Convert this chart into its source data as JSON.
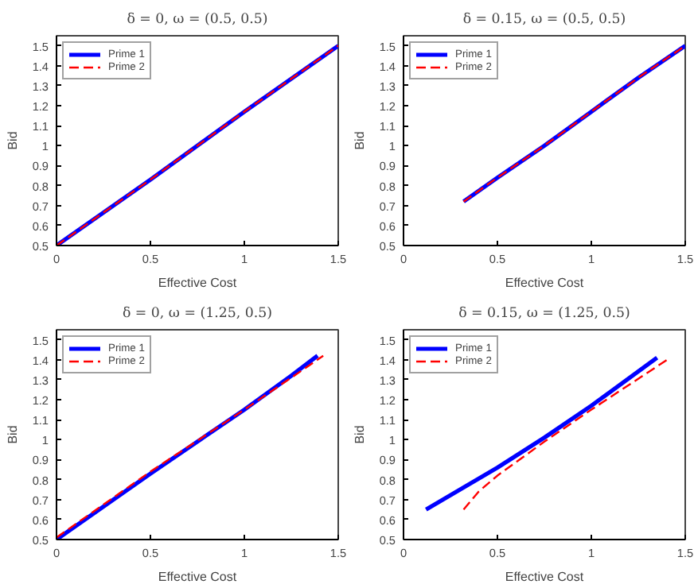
{
  "chart_data": [
    {
      "type": "line",
      "title": "δ = 0, ω = (0.5, 0.5)",
      "xlabel": "Effective Cost",
      "ylabel": "Bid",
      "xlim": [
        0,
        1.5
      ],
      "ylim": [
        0.5,
        1.55
      ],
      "xticks": [
        0,
        0.5,
        1,
        1.5
      ],
      "yticks": [
        0.5,
        0.6,
        0.7,
        0.8,
        0.9,
        1,
        1.1,
        1.2,
        1.3,
        1.4,
        1.5
      ],
      "legend": "top left",
      "grid": false,
      "series": [
        {
          "name": "Prime 1",
          "color": "#0000ff",
          "line_style": "solid",
          "x": [
            0,
            0.5,
            1,
            1.5
          ],
          "values": [
            0.5,
            0.83,
            1.17,
            1.5
          ]
        },
        {
          "name": "Prime 2",
          "color": "#ff0000",
          "line_style": "dashed",
          "x": [
            0,
            0.5,
            1,
            1.5
          ],
          "values": [
            0.5,
            0.83,
            1.17,
            1.5
          ]
        }
      ]
    },
    {
      "type": "line",
      "title": "δ = 0.15, ω = (0.5, 0.5)",
      "xlabel": "Effective Cost",
      "ylabel": "Bid",
      "xlim": [
        0,
        1.5
      ],
      "ylim": [
        0.5,
        1.55
      ],
      "xticks": [
        0,
        0.5,
        1,
        1.5
      ],
      "yticks": [
        0.5,
        0.6,
        0.7,
        0.8,
        0.9,
        1,
        1.1,
        1.2,
        1.3,
        1.4,
        1.5
      ],
      "legend": "top left",
      "grid": false,
      "series": [
        {
          "name": "Prime 1",
          "color": "#0000ff",
          "line_style": "solid",
          "x": [
            0.32,
            0.5,
            0.75,
            1,
            1.25,
            1.5
          ],
          "values": [
            0.72,
            0.84,
            1.0,
            1.17,
            1.34,
            1.5
          ]
        },
        {
          "name": "Prime 2",
          "color": "#ff0000",
          "line_style": "dashed",
          "x": [
            0.32,
            0.5,
            0.75,
            1,
            1.25,
            1.5
          ],
          "values": [
            0.72,
            0.84,
            1.0,
            1.17,
            1.34,
            1.5
          ]
        }
      ]
    },
    {
      "type": "line",
      "title": "δ = 0, ω = (1.25, 0.5)",
      "xlabel": "Effective Cost",
      "ylabel": "Bid",
      "xlim": [
        0,
        1.5
      ],
      "ylim": [
        0.5,
        1.55
      ],
      "xticks": [
        0,
        0.5,
        1,
        1.5
      ],
      "yticks": [
        0.5,
        0.6,
        0.7,
        0.8,
        0.9,
        1,
        1.1,
        1.2,
        1.3,
        1.4,
        1.5
      ],
      "legend": "top left",
      "grid": false,
      "series": [
        {
          "name": "Prime 1",
          "color": "#0000ff",
          "line_style": "solid",
          "x": [
            0,
            0.5,
            1,
            1.25,
            1.39
          ],
          "values": [
            0.5,
            0.83,
            1.15,
            1.32,
            1.42
          ]
        },
        {
          "name": "Prime 2",
          "color": "#ff0000",
          "line_style": "dashed",
          "x": [
            0,
            0.5,
            1,
            1.25,
            1.42
          ],
          "values": [
            0.51,
            0.84,
            1.15,
            1.31,
            1.42
          ]
        }
      ]
    },
    {
      "type": "line",
      "title": "δ = 0.15, ω = (1.25, 0.5)",
      "xlabel": "Effective Cost",
      "ylabel": "Bid",
      "xlim": [
        0,
        1.5
      ],
      "ylim": [
        0.5,
        1.55
      ],
      "xticks": [
        0,
        0.5,
        1,
        1.5
      ],
      "yticks": [
        0.5,
        0.6,
        0.7,
        0.8,
        0.9,
        1,
        1.1,
        1.2,
        1.3,
        1.4,
        1.5
      ],
      "legend": "top left",
      "grid": false,
      "series": [
        {
          "name": "Prime 1",
          "color": "#0000ff",
          "line_style": "solid",
          "x": [
            0.12,
            0.3,
            0.5,
            0.75,
            1,
            1.35
          ],
          "values": [
            0.65,
            0.75,
            0.86,
            1.01,
            1.17,
            1.41
          ]
        },
        {
          "name": "Prime 2",
          "color": "#ff0000",
          "line_style": "dashed",
          "x": [
            0.32,
            0.4,
            0.5,
            0.75,
            1,
            1.42
          ],
          "values": [
            0.65,
            0.74,
            0.82,
            0.99,
            1.15,
            1.41
          ]
        }
      ]
    }
  ]
}
